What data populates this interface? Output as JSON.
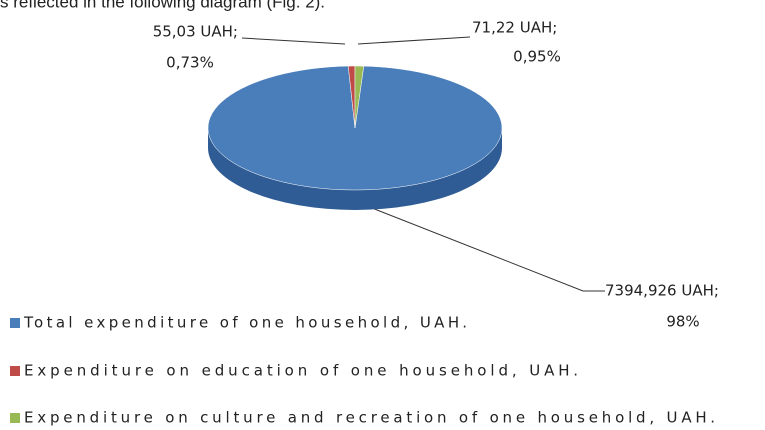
{
  "intro_text": "s reflected in the following diagram (Fig. 2).",
  "chart_data": {
    "type": "pie",
    "categories": [
      "Total expenditure of one household, UAH.",
      "Expenditure on education of one household, UAH.",
      "Expenditure on culture and recreation of one household, UAH."
    ],
    "values": [
      7394.926,
      55.03,
      71.22
    ],
    "value_labels": [
      "7394,926 UAH;",
      "55,03 UAH;",
      "71,22 UAH;"
    ],
    "percent_labels": [
      "98%",
      "0,73%",
      "0,95%"
    ],
    "colors": [
      "#4a7ebb",
      "#be4b48",
      "#98b954"
    ],
    "side_colors": [
      "#2f5c94",
      "#8e3330",
      "#6f8a3a"
    ],
    "legend": "bottom-left"
  }
}
